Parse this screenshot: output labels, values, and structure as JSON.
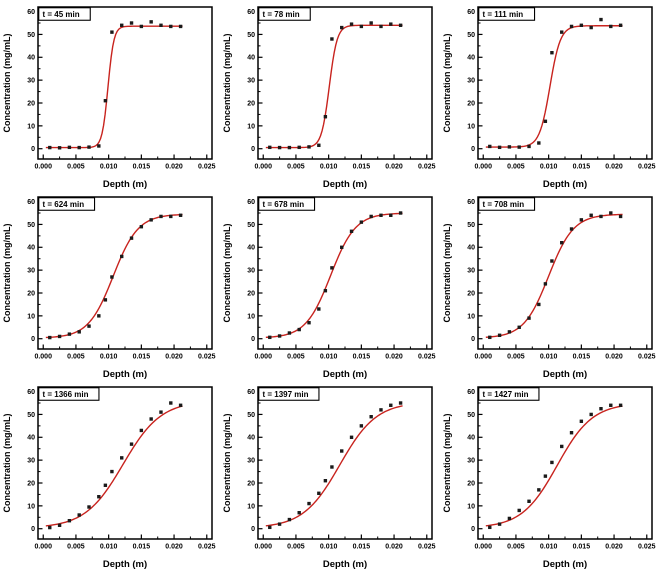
{
  "page": {
    "background": "#ffffff"
  },
  "chart_data": {
    "type": "scatter",
    "layout": "3x3 grid of concentration profiles vs depth at increasing times",
    "xlabel": "Depth (m)",
    "ylabel": "Concentration (mg/mL)",
    "xlim": [
      -0.0008,
      0.0258
    ],
    "ylim": [
      -4.5,
      62
    ],
    "xticks": [
      0.0,
      0.005,
      0.01,
      0.015,
      0.02,
      0.025
    ],
    "yticks": [
      0,
      10,
      20,
      30,
      40,
      50,
      60
    ],
    "x_minor_ticks": [
      0.0025,
      0.0075,
      0.0125,
      0.0175,
      0.0225
    ],
    "y_minor_ticks": [
      5,
      15,
      25,
      35,
      45,
      55
    ],
    "marker_color": "#1a1a1a",
    "fit_color": "#c8231e",
    "axis_color": "#000000",
    "fit_model": "logistic: y = y0 + (A - y0) / (1 + exp(-(x - x0)/w))",
    "plots": [
      {
        "title": "t = 45 min",
        "x": [
          0.001,
          0.0025,
          0.004,
          0.0055,
          0.007,
          0.0085,
          0.0095,
          0.0105,
          0.012,
          0.0135,
          0.015,
          0.0165,
          0.018,
          0.0195,
          0.021
        ],
        "y": [
          0.5,
          0.4,
          0.6,
          0.5,
          0.7,
          1.2,
          21,
          51,
          54,
          55,
          53.5,
          55.5,
          54,
          53.5,
          53.5
        ],
        "fit": {
          "y0": 0.5,
          "A": 53.6,
          "x0": 0.0099,
          "w": 0.00045
        }
      },
      {
        "title": "t = 78 min",
        "x": [
          0.001,
          0.0025,
          0.004,
          0.0055,
          0.007,
          0.0085,
          0.0095,
          0.0105,
          0.012,
          0.0135,
          0.015,
          0.0165,
          0.018,
          0.0195,
          0.021
        ],
        "y": [
          0.6,
          0.5,
          0.5,
          0.6,
          0.8,
          1.5,
          14,
          48,
          53,
          54.5,
          53.5,
          55,
          53.5,
          54.5,
          54
        ],
        "fit": {
          "y0": 0.5,
          "A": 54,
          "x0": 0.0101,
          "w": 0.0006
        }
      },
      {
        "title": "t = 111 min",
        "x": [
          0.001,
          0.0025,
          0.004,
          0.0055,
          0.007,
          0.0085,
          0.0095,
          0.0105,
          0.012,
          0.0135,
          0.015,
          0.0165,
          0.018,
          0.0195,
          0.021
        ],
        "y": [
          1,
          0.6,
          0.8,
          0.7,
          1,
          2.5,
          12,
          42,
          51,
          53.5,
          54,
          53,
          56.5,
          53.5,
          54
        ],
        "fit": {
          "y0": 0.7,
          "A": 53.8,
          "x0": 0.0102,
          "w": 0.0008
        }
      },
      {
        "title": "t = 624 min",
        "x": [
          0.001,
          0.0025,
          0.004,
          0.0055,
          0.007,
          0.0085,
          0.0095,
          0.0105,
          0.012,
          0.0135,
          0.015,
          0.0165,
          0.018,
          0.0195,
          0.021
        ],
        "y": [
          0.5,
          1,
          2,
          3,
          5.5,
          10,
          17,
          27,
          36,
          44,
          49,
          52,
          53.5,
          53.5,
          54
        ],
        "fit": {
          "y0": 0.3,
          "A": 54.5,
          "x0": 0.0107,
          "w": 0.0019
        }
      },
      {
        "title": "t = 678 min",
        "x": [
          0.001,
          0.0025,
          0.004,
          0.0055,
          0.007,
          0.0085,
          0.0095,
          0.0105,
          0.012,
          0.0135,
          0.015,
          0.0165,
          0.018,
          0.0195,
          0.021
        ],
        "y": [
          0.6,
          1.2,
          2.5,
          4,
          7,
          13,
          21,
          31,
          40,
          47,
          51,
          53.5,
          54,
          54,
          55
        ],
        "fit": {
          "y0": 0.3,
          "A": 55,
          "x0": 0.0103,
          "w": 0.0019
        }
      },
      {
        "title": "t = 708 min",
        "x": [
          0.001,
          0.0025,
          0.004,
          0.0055,
          0.007,
          0.0085,
          0.0095,
          0.0105,
          0.012,
          0.0135,
          0.015,
          0.0165,
          0.018,
          0.0195,
          0.021
        ],
        "y": [
          0.6,
          1.5,
          3,
          5,
          9,
          15,
          24,
          34,
          42,
          48,
          52,
          54,
          53.5,
          55,
          53.5
        ],
        "fit": {
          "y0": 0.3,
          "A": 54.5,
          "x0": 0.01,
          "w": 0.0019
        }
      },
      {
        "title": "t = 1366 min",
        "x": [
          0.001,
          0.0025,
          0.004,
          0.0055,
          0.007,
          0.0085,
          0.0095,
          0.0105,
          0.012,
          0.0135,
          0.015,
          0.0165,
          0.018,
          0.0195,
          0.021
        ],
        "y": [
          0.5,
          1.5,
          3.5,
          6,
          9.5,
          14,
          19,
          25,
          31,
          37,
          43,
          48,
          51,
          55,
          54
        ],
        "fit": {
          "y0": 0.3,
          "A": 56,
          "x0": 0.0122,
          "w": 0.0029
        }
      },
      {
        "title": "t = 1397 min",
        "x": [
          0.001,
          0.0025,
          0.004,
          0.0055,
          0.007,
          0.0085,
          0.0095,
          0.0105,
          0.012,
          0.0135,
          0.015,
          0.0165,
          0.018,
          0.0195,
          0.021
        ],
        "y": [
          0.6,
          2,
          4,
          7,
          11,
          15.5,
          21,
          27,
          34,
          40,
          45,
          49,
          52,
          54,
          55
        ],
        "fit": {
          "y0": 0.3,
          "A": 55.5,
          "x0": 0.0117,
          "w": 0.0028
        }
      },
      {
        "title": "t = 1427 min",
        "x": [
          0.001,
          0.0025,
          0.004,
          0.0055,
          0.007,
          0.0085,
          0.0095,
          0.0105,
          0.012,
          0.0135,
          0.015,
          0.0165,
          0.018,
          0.0195,
          0.021
        ],
        "y": [
          0.6,
          2,
          4.5,
          8,
          12,
          17,
          23,
          29,
          36,
          42,
          47,
          50,
          52.5,
          54,
          54
        ],
        "fit": {
          "y0": 0.3,
          "A": 55,
          "x0": 0.0113,
          "w": 0.0027
        }
      }
    ]
  }
}
